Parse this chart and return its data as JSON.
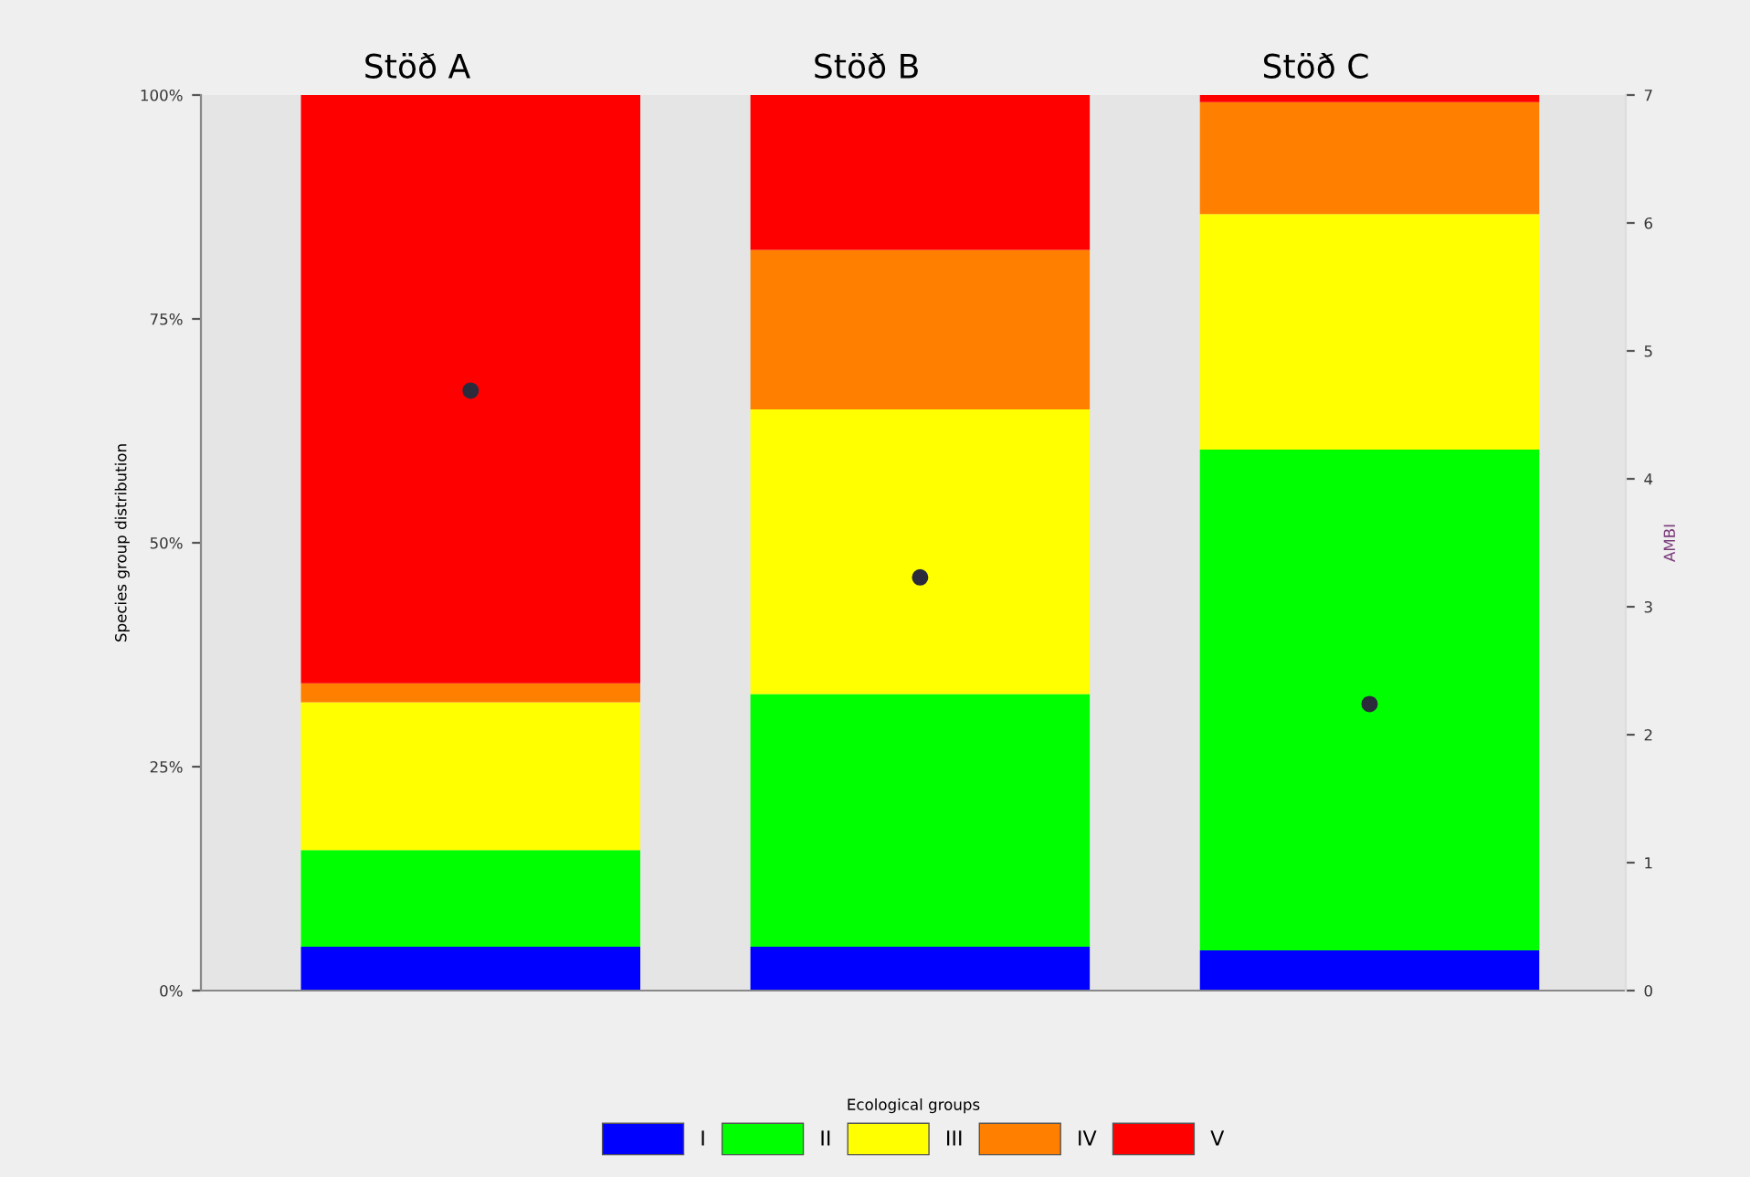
{
  "chart_data": {
    "type": "bar",
    "stacked": true,
    "categories": [
      "Stöð A",
      "Stöð B",
      "Stöð C"
    ],
    "ylabel": "Species group distribution",
    "y2label": "AMBI",
    "legend_title": "Ecological groups",
    "legend": "bottom",
    "grid": false,
    "ylim": [
      0,
      100
    ],
    "yticks": [
      {
        "value": 0,
        "label": "0%"
      },
      {
        "value": 25,
        "label": "25%"
      },
      {
        "value": 50,
        "label": "50%"
      },
      {
        "value": 75,
        "label": "75%"
      },
      {
        "value": 100,
        "label": "100%"
      }
    ],
    "y2lim": [
      0,
      7
    ],
    "y2ticks": [
      0,
      1,
      2,
      3,
      4,
      5,
      6,
      7
    ],
    "series": [
      {
        "name": "I",
        "color": "#0000ff",
        "values": [
          4.9,
          4.9,
          4.5
        ]
      },
      {
        "name": "II",
        "color": "#00ff00",
        "values": [
          10.8,
          28.2,
          55.9
        ]
      },
      {
        "name": "III",
        "color": "#ffff00",
        "values": [
          16.5,
          31.8,
          26.3
        ]
      },
      {
        "name": "IV",
        "color": "#ff7f00",
        "values": [
          2.1,
          17.8,
          12.5
        ]
      },
      {
        "name": "V",
        "color": "#ff0000",
        "values": [
          65.7,
          17.3,
          0.8
        ]
      },
      {
        "type": "scatter",
        "axis": "y2",
        "color": "#2b2b3b",
        "marker": "circle",
        "values": [
          4.69,
          3.23,
          2.24
        ]
      }
    ]
  }
}
